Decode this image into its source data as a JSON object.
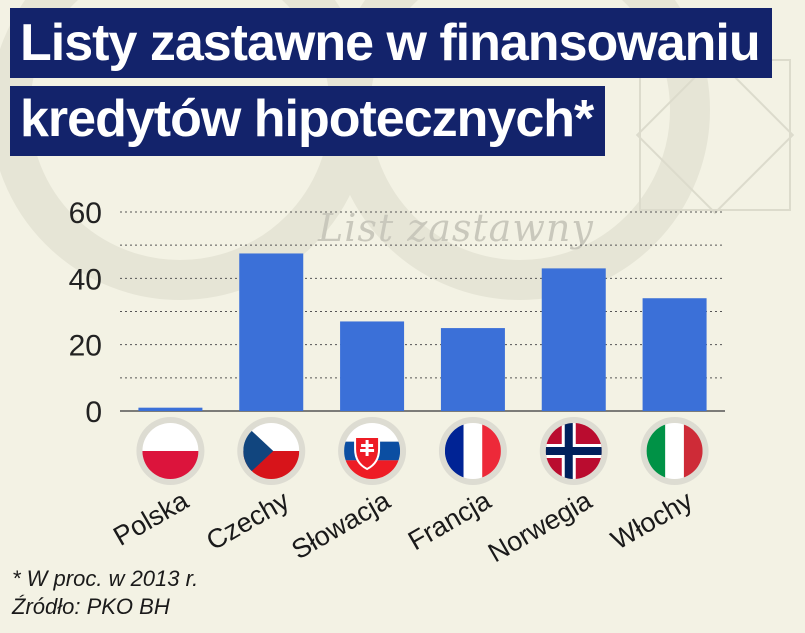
{
  "title_line1": "Listy zastawne w finansowaniu",
  "title_line2": "kredytów hipotecznych*",
  "watermark": "List zastawny",
  "footnote": "* W proc. w 2013 r.",
  "source": "Źródło: PKO BH",
  "colors": {
    "title_bg": "#13236b",
    "bar": "#3b70d8",
    "grid": "#555555"
  },
  "chart_data": {
    "type": "bar",
    "categories": [
      "Polska",
      "Czechy",
      "Słowacja",
      "Francja",
      "Norwegia",
      "Włochy"
    ],
    "values": [
      1,
      47.5,
      27,
      25,
      43,
      34
    ],
    "ylim": [
      0,
      60
    ],
    "yticks": [
      0,
      20,
      40,
      60
    ],
    "grid": "dotted horizontal",
    "legend": "none",
    "flags": [
      "flag-poland-icon",
      "flag-czechia-icon",
      "flag-slovakia-icon",
      "flag-france-icon",
      "flag-norway-icon",
      "flag-italy-icon"
    ]
  }
}
